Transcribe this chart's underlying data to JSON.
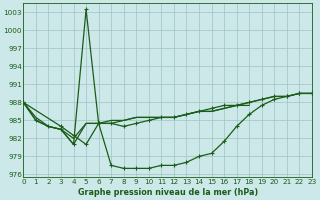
{
  "title": "Graphe pression niveau de la mer (hPa)",
  "bg_color": "#cde8e8",
  "grid_color": "#a0c4c4",
  "line_color": "#1a5c1a",
  "xlim": [
    0,
    23
  ],
  "ylim": [
    975.5,
    1004.5
  ],
  "yticks": [
    976,
    979,
    982,
    985,
    988,
    991,
    994,
    997,
    1000,
    1003
  ],
  "xticks": [
    0,
    1,
    2,
    3,
    4,
    5,
    6,
    7,
    8,
    9,
    10,
    11,
    12,
    13,
    14,
    15,
    16,
    17,
    18,
    19,
    20,
    21,
    22,
    23
  ],
  "series": [
    {
      "x": [
        0,
        1,
        2,
        3,
        4,
        5,
        6,
        7,
        8,
        9,
        10,
        11,
        12,
        13,
        14,
        15,
        16,
        17,
        18,
        19,
        20,
        21,
        22,
        23
      ],
      "y": [
        988,
        985,
        984,
        983.5,
        981,
        1003.5,
        984.5,
        977.5,
        977,
        977,
        977,
        977.5,
        977.5,
        978,
        979,
        979.5,
        981.5,
        984,
        986,
        987.5,
        988.5,
        989,
        989.5,
        989.5
      ],
      "marker": true,
      "lw": 0.9
    },
    {
      "x": [
        0,
        1,
        2,
        3,
        4,
        5,
        6,
        7,
        8,
        9,
        10,
        11,
        12,
        13,
        14,
        15,
        16,
        17,
        18
      ],
      "y": [
        988,
        985.5,
        984,
        983.5,
        981,
        984.5,
        984.5,
        985,
        985,
        985.5,
        985.5,
        985.5,
        985.5,
        986,
        986.5,
        986.5,
        987,
        987.5,
        987.5
      ],
      "marker": false,
      "lw": 0.9
    },
    {
      "x": [
        0,
        3,
        4,
        5,
        6,
        7,
        8,
        9,
        10,
        11,
        12,
        13,
        14,
        15,
        16,
        17,
        18,
        19,
        20,
        21,
        22,
        23
      ],
      "y": [
        988,
        984,
        982.5,
        981,
        984.5,
        984.5,
        984,
        984.5,
        985,
        985.5,
        985.5,
        986,
        986.5,
        987,
        987.5,
        987.5,
        988,
        988.5,
        989,
        989,
        989.5,
        989.5
      ],
      "marker": true,
      "lw": 0.9
    },
    {
      "x": [
        0,
        1,
        2,
        3,
        4,
        5,
        6,
        7,
        8,
        9,
        10,
        11,
        12,
        13,
        14,
        15,
        16,
        17,
        18,
        19,
        20,
        21,
        22,
        23
      ],
      "y": [
        988,
        985,
        984,
        983.5,
        982,
        984.5,
        984.5,
        984.5,
        985,
        985.5,
        985.5,
        985.5,
        985.5,
        986,
        986.5,
        986.5,
        987,
        987.5,
        988,
        988.5,
        989,
        989,
        989.5,
        989.5
      ],
      "marker": false,
      "lw": 0.9
    }
  ]
}
